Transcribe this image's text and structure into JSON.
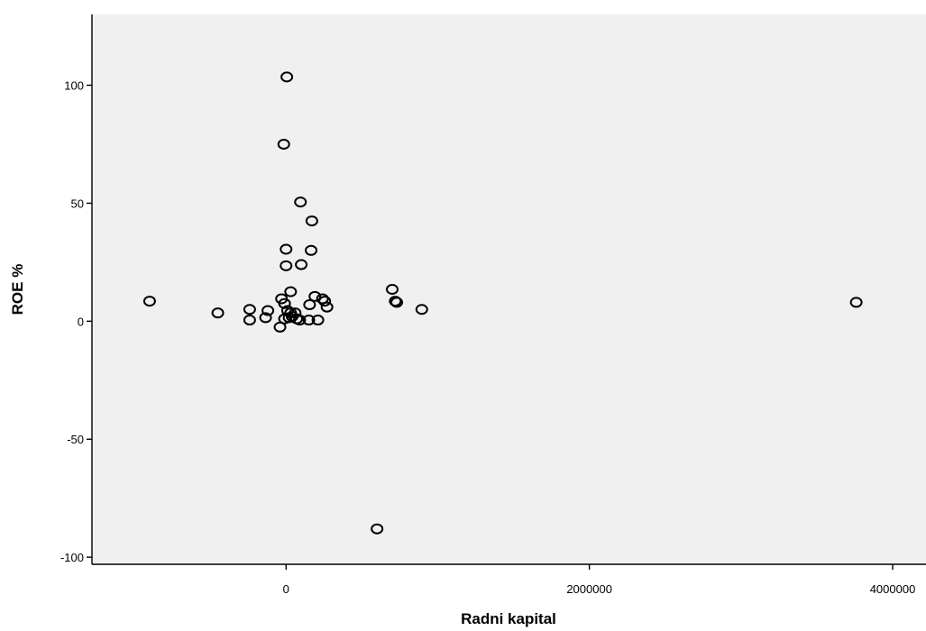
{
  "chart_data": {
    "type": "scatter",
    "title": "",
    "xlabel": "Radni kapital",
    "ylabel": "ROE %",
    "xlim": [
      -1280000,
      4220000
    ],
    "ylim": [
      -103,
      130
    ],
    "xticks": [
      0,
      2000000,
      4000000
    ],
    "yticks": [
      -100,
      -50,
      0,
      50,
      100
    ],
    "xtick_labels": [
      "0",
      "2000000",
      "4000000"
    ],
    "ytick_labels": [
      "-100",
      "-50",
      "0",
      "50",
      "100"
    ],
    "grid": false,
    "legend": "none",
    "colors": {
      "plot_background": "#f0f0f0",
      "marker": "#000000"
    },
    "points": [
      {
        "x": 5000,
        "y": 103.5
      },
      {
        "x": -15000,
        "y": 75
      },
      {
        "x": 95000,
        "y": 50.5
      },
      {
        "x": 170000,
        "y": 42.5
      },
      {
        "x": 0,
        "y": 30.5
      },
      {
        "x": 165000,
        "y": 30
      },
      {
        "x": 100000,
        "y": 24
      },
      {
        "x": 0,
        "y": 23.5
      },
      {
        "x": 30000,
        "y": 12.5
      },
      {
        "x": 190000,
        "y": 10.5
      },
      {
        "x": 240000,
        "y": 9.5
      },
      {
        "x": 255000,
        "y": 8.5
      },
      {
        "x": -30000,
        "y": 9.5
      },
      {
        "x": -10000,
        "y": 7.5
      },
      {
        "x": 155000,
        "y": 7
      },
      {
        "x": 270000,
        "y": 6
      },
      {
        "x": 10000,
        "y": 4.5
      },
      {
        "x": 30000,
        "y": 3.5
      },
      {
        "x": 60000,
        "y": 3.5
      },
      {
        "x": 40000,
        "y": 2
      },
      {
        "x": 20000,
        "y": 1.5
      },
      {
        "x": 70000,
        "y": 1
      },
      {
        "x": -10000,
        "y": 1
      },
      {
        "x": 90000,
        "y": 0.5
      },
      {
        "x": 150000,
        "y": 0.5
      },
      {
        "x": 210000,
        "y": 0.5
      },
      {
        "x": -40000,
        "y": -2.5
      },
      {
        "x": -240000,
        "y": 5
      },
      {
        "x": -240000,
        "y": 0.5
      },
      {
        "x": -120000,
        "y": 4.5
      },
      {
        "x": -135000,
        "y": 1.5
      },
      {
        "x": -450000,
        "y": 3.5
      },
      {
        "x": -900000,
        "y": 8.5
      },
      {
        "x": 700000,
        "y": 13.5
      },
      {
        "x": 720000,
        "y": 8.5
      },
      {
        "x": 730000,
        "y": 8
      },
      {
        "x": 895000,
        "y": 5
      },
      {
        "x": 600000,
        "y": -88
      },
      {
        "x": 3760000,
        "y": 8
      }
    ]
  }
}
